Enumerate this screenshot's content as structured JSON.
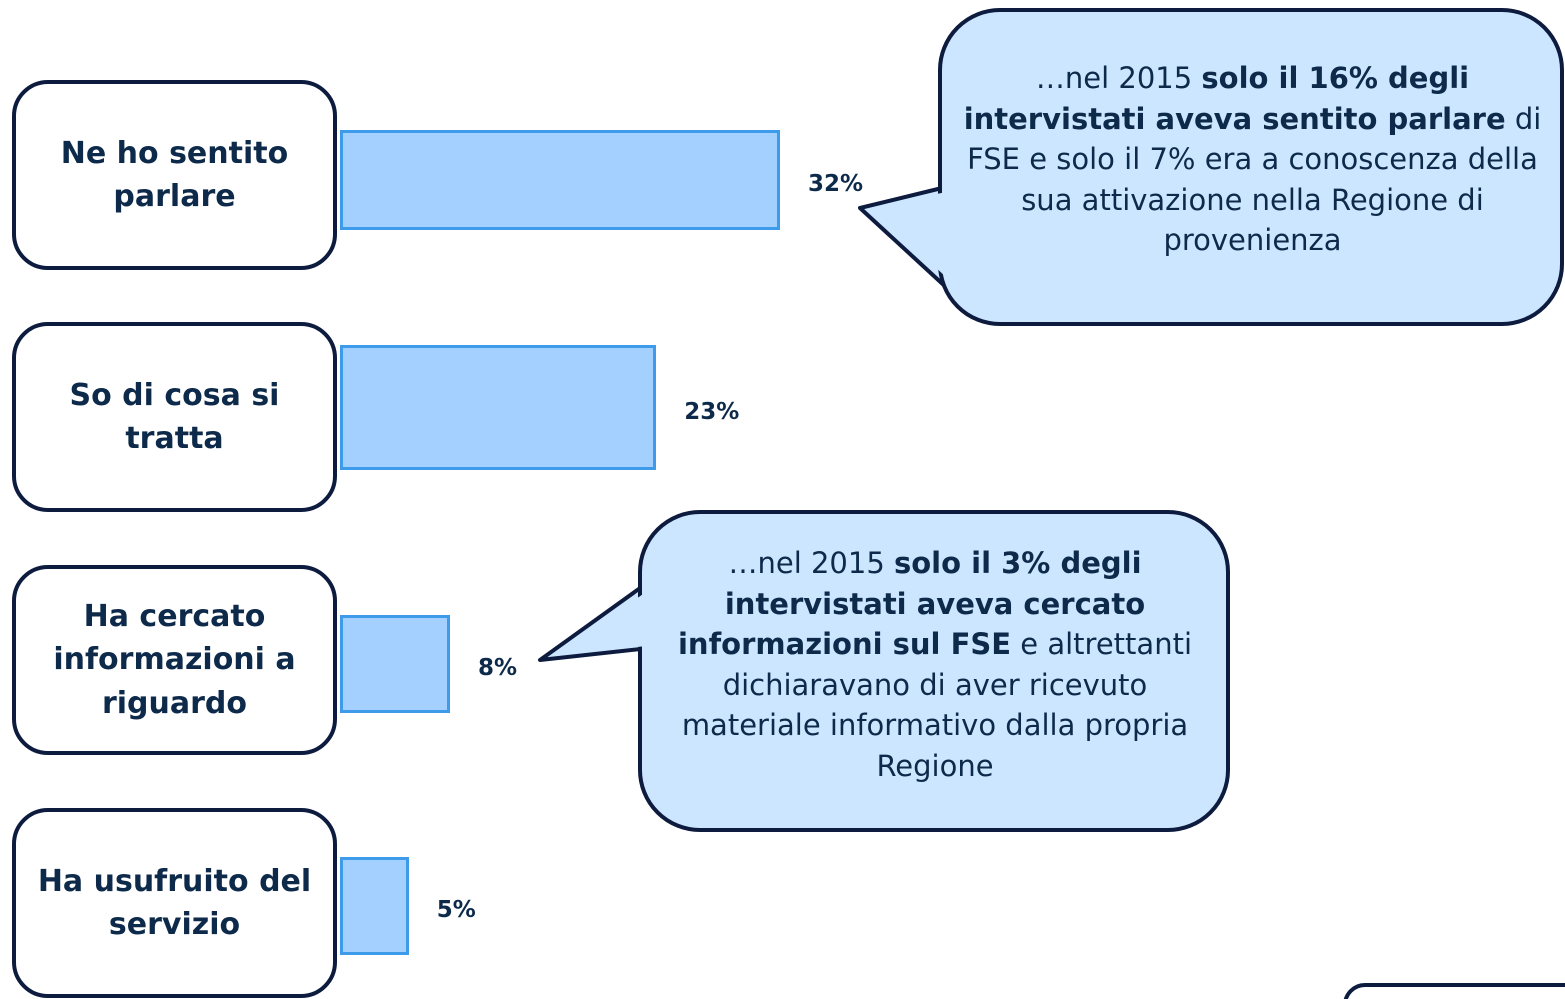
{
  "chart_data": {
    "type": "bar",
    "orientation": "horizontal",
    "categories": [
      "Ne ho sentito parlare",
      "So di cosa si tratta",
      "Ha cercato informazioni a riguardo",
      "Ha usufruito del servizio"
    ],
    "values": [
      32,
      23,
      8,
      5
    ],
    "value_labels": [
      "32%",
      "23%",
      "8%",
      "5%"
    ],
    "color": "#a3d0ff",
    "annotations": [
      {
        "runs": [
          {
            "text": "…nel 2015 ",
            "bold": false
          },
          {
            "text": "solo il 16% degli intervistati aveva sentito parlare",
            "bold": true
          },
          {
            "text": " di FSE e solo il 7% era a conoscenza della sua attivazione nella Regione di provenienza",
            "bold": false
          }
        ]
      },
      {
        "runs": [
          {
            "text": "…nel 2015 ",
            "bold": false
          },
          {
            "text": "solo il 3% degli intervistati aveva cercato informazioni sul FSE",
            "bold": true
          },
          {
            "text": " e altrettanti dichiaravano di aver ricevuto materiale informativo dalla propria Regione",
            "bold": false
          }
        ]
      }
    ]
  }
}
